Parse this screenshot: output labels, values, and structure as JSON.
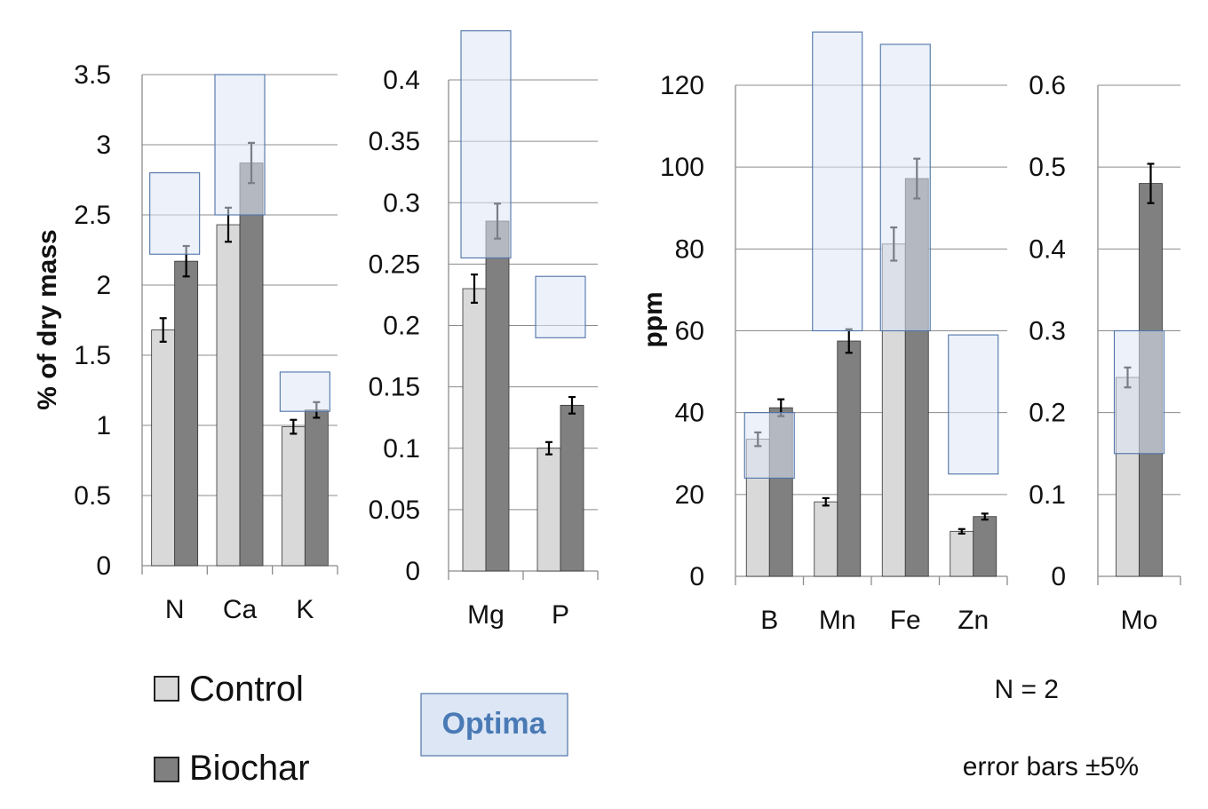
{
  "colors": {
    "control": "#d9d9d9",
    "biochar": "#808080",
    "optima_fill": "#dce6f5",
    "optima_stroke": "#4f74a8",
    "grid": "#8c8c8c",
    "optima_text": "#4a7ab5"
  },
  "legend": {
    "control_label": "Control",
    "biochar_label": "Biochar",
    "optima_label": "Optima"
  },
  "notes": {
    "n_text": "N = 2",
    "error_text": "error bars ±5%"
  },
  "chart_data": [
    {
      "type": "bar",
      "ylabel": "% of dry mass",
      "ylim": [
        0,
        3.5
      ],
      "yticks": [
        "0",
        "0.5",
        "1",
        "1.5",
        "2",
        "2.5",
        "3",
        "3.5"
      ],
      "categories": [
        "N",
        "Ca",
        "K"
      ],
      "series": [
        {
          "name": "Control",
          "values": [
            1.68,
            2.43,
            0.99
          ]
        },
        {
          "name": "Biochar",
          "values": [
            2.17,
            2.87,
            1.11
          ]
        }
      ],
      "error_pct": 5,
      "optima": [
        [
          2.22,
          2.8
        ],
        [
          2.5,
          3.5
        ],
        [
          1.1,
          1.38
        ]
      ],
      "grid": true
    },
    {
      "type": "bar",
      "ylabel": "",
      "ylim": [
        0,
        0.4
      ],
      "yticks": [
        "0",
        "0.05",
        "0.1",
        "0.15",
        "0.2",
        "0.25",
        "0.3",
        "0.35",
        "0.4"
      ],
      "categories": [
        "Mg",
        "P"
      ],
      "series": [
        {
          "name": "Control",
          "values": [
            0.23,
            0.1
          ]
        },
        {
          "name": "Biochar",
          "values": [
            0.285,
            0.135
          ]
        }
      ],
      "error_pct": 5,
      "optima": [
        [
          0.255,
          0.44
        ],
        [
          0.19,
          0.24
        ]
      ],
      "grid": true
    },
    {
      "type": "bar",
      "ylabel": "ppm",
      "ylim": [
        0,
        120
      ],
      "yticks": [
        "0",
        "20",
        "40",
        "60",
        "80",
        "100",
        "120"
      ],
      "categories": [
        "B",
        "Mn",
        "Fe",
        "Zn"
      ],
      "series": [
        {
          "name": "Control",
          "values": [
            33.5,
            18.2,
            81.2,
            11
          ]
        },
        {
          "name": "Biochar",
          "values": [
            41.2,
            57.5,
            97.2,
            14.6
          ]
        }
      ],
      "error_pct": 5,
      "optima": [
        [
          24,
          40
        ],
        [
          60,
          133
        ],
        [
          60,
          130
        ],
        [
          25,
          59
        ]
      ],
      "grid": true
    },
    {
      "type": "bar",
      "ylabel": "",
      "ylim": [
        0,
        0.6
      ],
      "yticks": [
        "0",
        "0.1",
        "0.2",
        "0.3",
        "0.4",
        "0.5",
        "0.6"
      ],
      "categories": [
        "Mo"
      ],
      "series": [
        {
          "name": "Control",
          "values": [
            0.243
          ]
        },
        {
          "name": "Biochar",
          "values": [
            0.48
          ]
        }
      ],
      "error_pct": 5,
      "optima": [
        [
          0.15,
          0.3
        ]
      ],
      "grid": true
    }
  ]
}
